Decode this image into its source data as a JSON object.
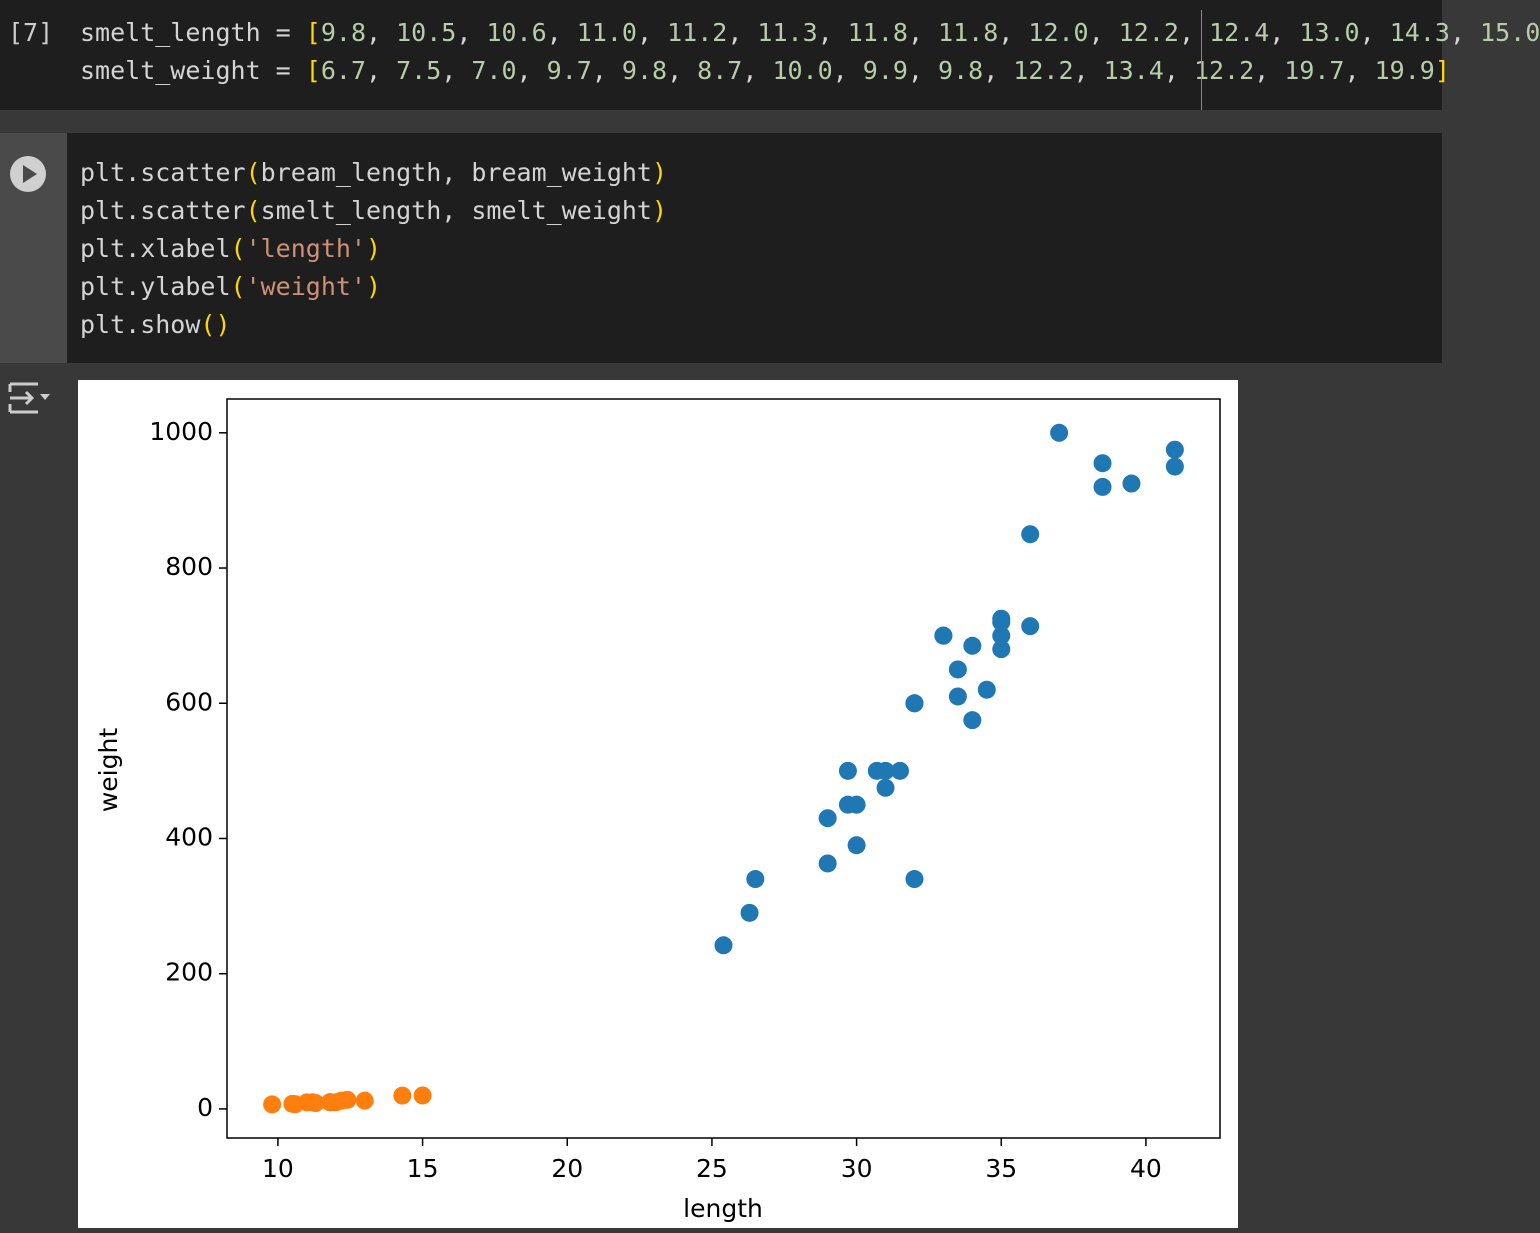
{
  "cells": [
    {
      "label": "[7]",
      "lines": [
        "smelt_length = [9.8, 10.5, 10.6, 11.0, 11.2, 11.3, 11.8, 11.8, 12.0, 12.2, 12.4, 13.0, 14.3, 15.0",
        "smelt_weight = [6.7, 7.5, 7.0, 9.7, 9.8, 8.7, 10.0, 9.9, 9.8, 12.2, 13.4, 12.2, 19.7, 19.9]"
      ]
    },
    {
      "lines": [
        "plt.scatter(bream_length, bream_weight)",
        "plt.scatter(smelt_length, smelt_weight)",
        "plt.xlabel('length')",
        "plt.ylabel('weight')",
        "plt.show()"
      ]
    }
  ],
  "chart_data": {
    "type": "scatter",
    "xlabel": "length",
    "ylabel": "weight",
    "xlim": [
      8.24,
      42.56
    ],
    "ylim": [
      -43,
      1050
    ],
    "xticks": [
      10,
      15,
      20,
      25,
      30,
      35,
      40
    ],
    "yticks": [
      0,
      200,
      400,
      600,
      800,
      1000
    ],
    "series": [
      {
        "color": "#1f77b4",
        "x": [
          25.4,
          26.3,
          26.5,
          29.0,
          29.0,
          29.7,
          29.7,
          30.0,
          30.0,
          30.7,
          31.0,
          31.0,
          31.5,
          32.0,
          32.0,
          32.0,
          33.0,
          33.0,
          33.5,
          33.5,
          34.0,
          34.0,
          34.5,
          35.0,
          35.0,
          35.0,
          35.0,
          36.0,
          36.0,
          37.0,
          38.5,
          38.5,
          39.5,
          41.0,
          41.0
        ],
        "values": [
          242,
          290,
          340,
          363,
          430,
          450,
          500,
          390,
          450,
          500,
          475,
          500,
          500,
          340,
          600,
          600,
          700,
          700,
          610,
          650,
          575,
          685,
          620,
          680,
          700,
          725,
          720,
          714,
          850,
          1000,
          920,
          955,
          925,
          975,
          950
        ]
      },
      {
        "color": "#ff7f0e",
        "x": [
          9.8,
          10.5,
          10.6,
          11.0,
          11.2,
          11.3,
          11.8,
          11.8,
          12.0,
          12.2,
          12.4,
          13.0,
          14.3,
          15.0
        ],
        "values": [
          6.7,
          7.5,
          7.0,
          9.7,
          9.8,
          8.7,
          10.0,
          9.9,
          9.8,
          12.2,
          13.4,
          12.2,
          19.7,
          19.9
        ]
      }
    ]
  }
}
